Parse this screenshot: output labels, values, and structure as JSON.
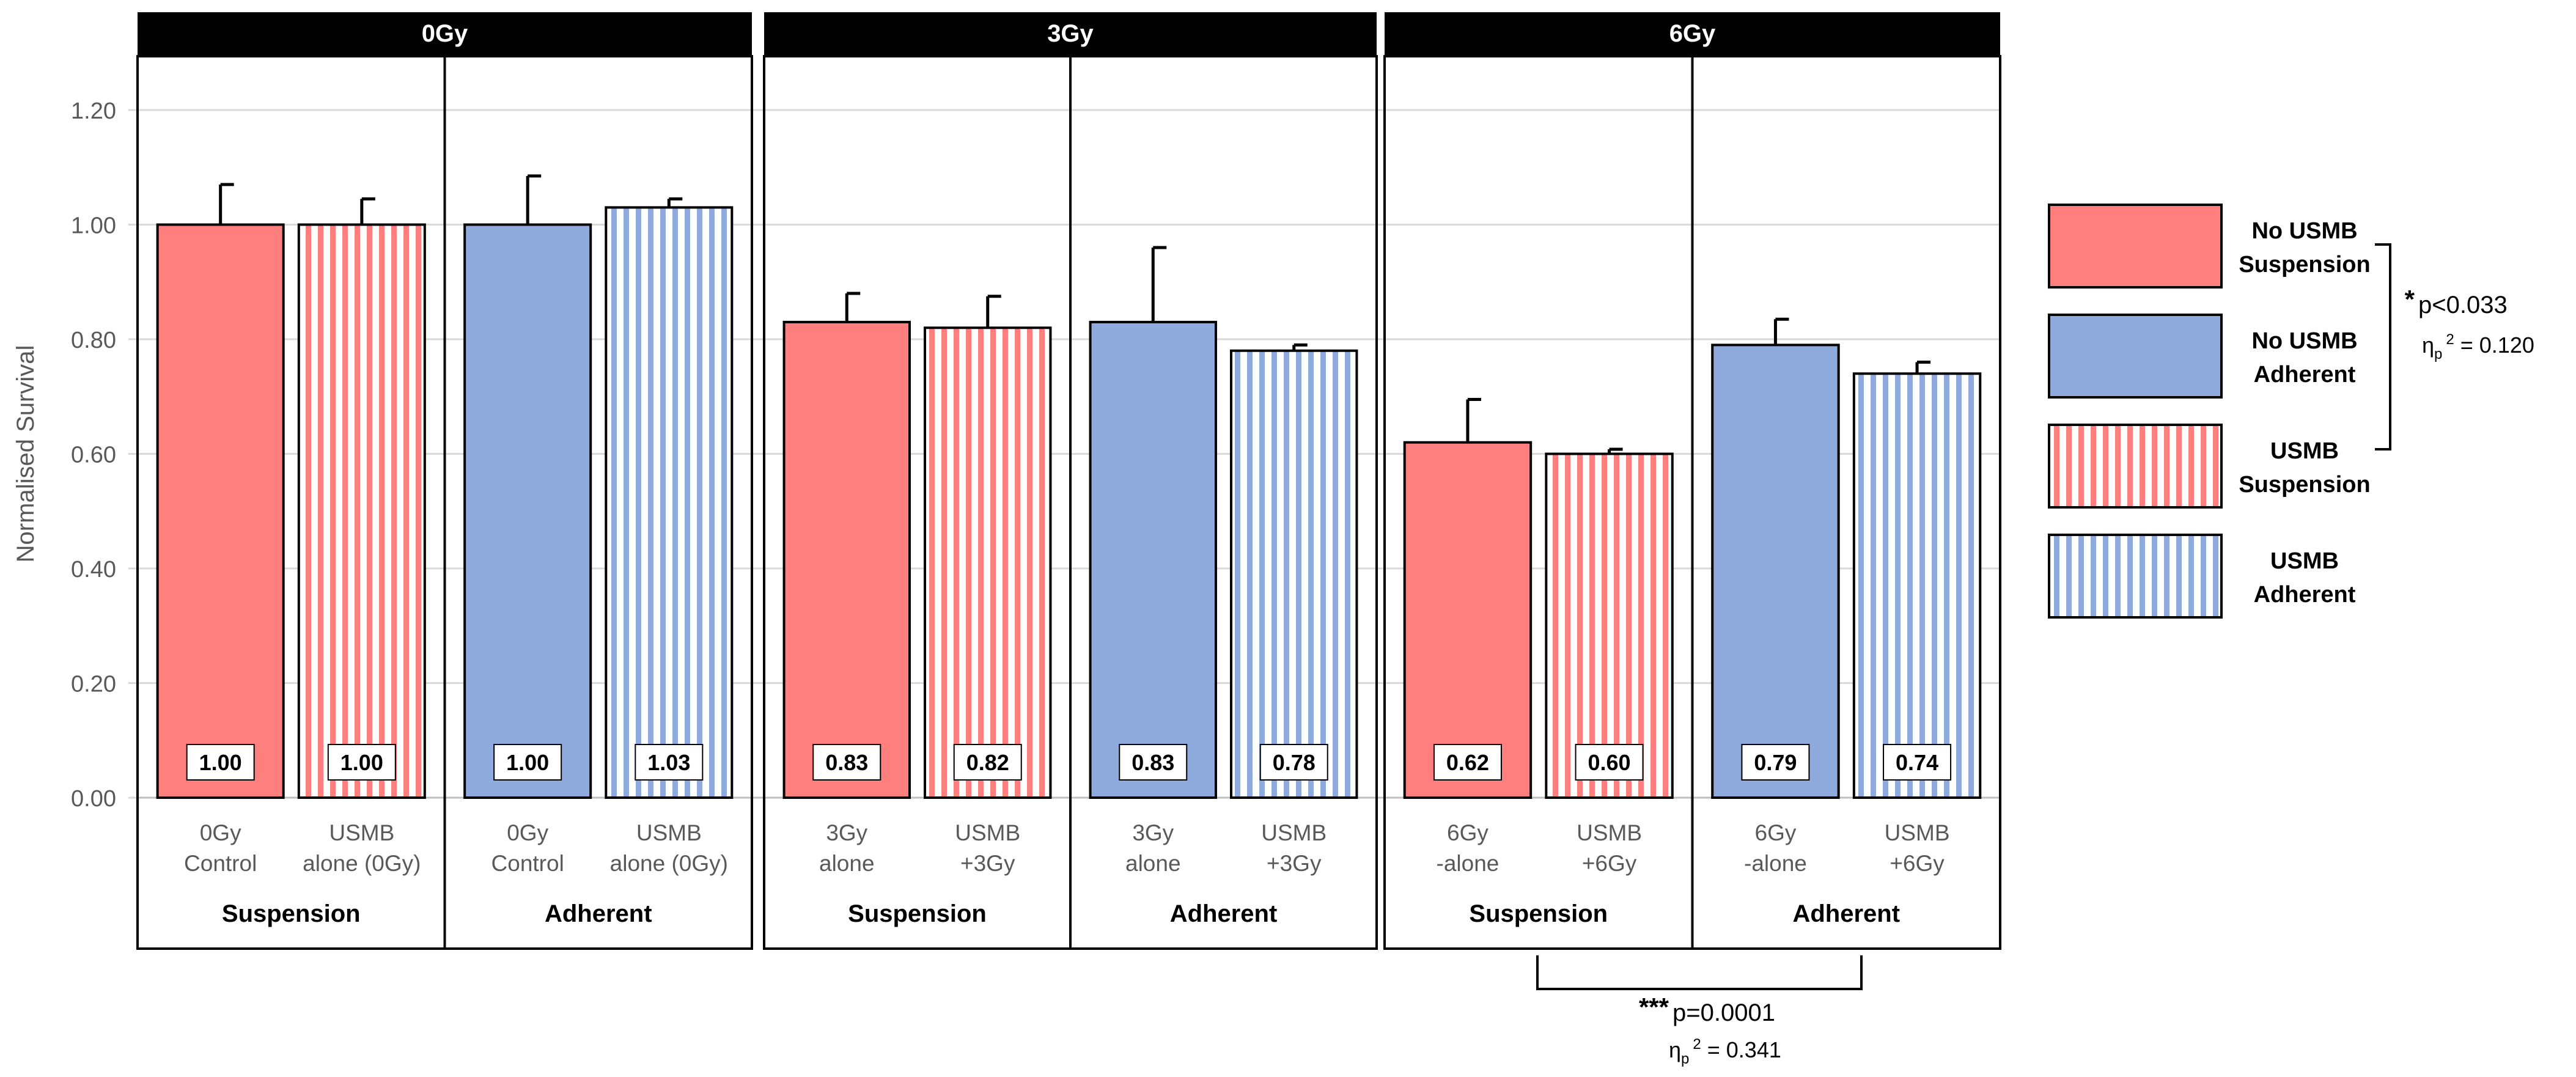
{
  "chart_data": {
    "type": "bar",
    "ylabel": "Normalised Survival",
    "ylim": [
      0,
      1.3
    ],
    "yticks": [
      "0.00",
      "0.20",
      "0.40",
      "0.60",
      "0.80",
      "1.00",
      "1.20"
    ],
    "ytick_values": [
      0,
      0.2,
      0.4,
      0.6,
      0.8,
      1.0,
      1.2
    ],
    "grid": true,
    "panels": [
      {
        "title": "0Gy",
        "groups": [
          {
            "label": "Suspension",
            "bars": [
              {
                "label_l1": "0Gy",
                "label_l2": "Control",
                "value": 1.0,
                "label": "1.00",
                "err": 0.07,
                "series": "no_usmb_suspension"
              },
              {
                "label_l1": "USMB",
                "label_l2": "alone (0Gy)",
                "value": 1.0,
                "label": "1.00",
                "err": 0.045,
                "series": "usmb_suspension"
              }
            ]
          },
          {
            "label": "Adherent",
            "bars": [
              {
                "label_l1": "0Gy",
                "label_l2": "Control",
                "value": 1.0,
                "label": "1.00",
                "err": 0.085,
                "series": "no_usmb_adherent"
              },
              {
                "label_l1": "USMB",
                "label_l2": "alone (0Gy)",
                "value": 1.03,
                "label": "1.03",
                "err": 0.015,
                "series": "usmb_adherent"
              }
            ]
          }
        ]
      },
      {
        "title": "3Gy",
        "groups": [
          {
            "label": "Suspension",
            "bars": [
              {
                "label_l1": "3Gy",
                "label_l2": "alone",
                "value": 0.83,
                "label": "0.83",
                "err": 0.05,
                "series": "no_usmb_suspension"
              },
              {
                "label_l1": "USMB",
                "label_l2": "+3Gy",
                "value": 0.82,
                "label": "0.82",
                "err": 0.055,
                "series": "usmb_suspension"
              }
            ]
          },
          {
            "label": "Adherent",
            "bars": [
              {
                "label_l1": "3Gy",
                "label_l2": "alone",
                "value": 0.83,
                "label": "0.83",
                "err": 0.13,
                "series": "no_usmb_adherent"
              },
              {
                "label_l1": "USMB",
                "label_l2": "+3Gy",
                "value": 0.78,
                "label": "0.78",
                "err": 0.01,
                "series": "usmb_adherent"
              }
            ]
          }
        ]
      },
      {
        "title": "6Gy",
        "groups": [
          {
            "label": "Suspension",
            "bars": [
              {
                "label_l1": "6Gy",
                "label_l2": "-alone",
                "value": 0.62,
                "label": "0.62",
                "err": 0.075,
                "series": "no_usmb_suspension"
              },
              {
                "label_l1": "USMB",
                "label_l2": "+6Gy",
                "value": 0.6,
                "label": "0.60",
                "err": 0.008,
                "series": "usmb_suspension"
              }
            ]
          },
          {
            "label": "Adherent",
            "bars": [
              {
                "label_l1": "6Gy",
                "label_l2": "-alone",
                "value": 0.79,
                "label": "0.79",
                "err": 0.045,
                "series": "no_usmb_adherent"
              },
              {
                "label_l1": "USMB",
                "label_l2": "+6Gy",
                "value": 0.74,
                "label": "0.74",
                "err": 0.02,
                "series": "usmb_adherent"
              }
            ]
          }
        ]
      }
    ],
    "legend": [
      {
        "key": "no_usmb_suspension",
        "line1": "No USMB",
        "line2": "Suspension",
        "color": "#FF7F7F",
        "pattern": "solid"
      },
      {
        "key": "no_usmb_adherent",
        "line1": "No USMB",
        "line2": "Adherent",
        "color": "#8FAADC",
        "pattern": "solid"
      },
      {
        "key": "usmb_suspension",
        "line1": "USMB",
        "line2": "Suspension",
        "color": "#FF7F7F",
        "pattern": "vertical-stripes"
      },
      {
        "key": "usmb_adherent",
        "line1": "USMB",
        "line2": "Adherent",
        "color": "#8FAADC",
        "pattern": "vertical-stripes"
      }
    ],
    "annotations": [
      {
        "id": "legend-sig",
        "stars": "*",
        "text": "p<0.033",
        "eta": "η",
        "eta_sub": "p",
        "eta_sup": "2",
        "eta_value": " = 0.120"
      },
      {
        "id": "bottom-sig",
        "stars": "***",
        "text": "p=0.0001",
        "eta": "η",
        "eta_sub": "p",
        "eta_sup": "2",
        "eta_value": " = 0.341"
      }
    ]
  },
  "colors": {
    "red": "#FF7F7F",
    "blue": "#8FAADC",
    "header": "#000000",
    "header_text": "#FFFFFF",
    "grid": "#D9D9D9",
    "axis_text": "#595959"
  }
}
